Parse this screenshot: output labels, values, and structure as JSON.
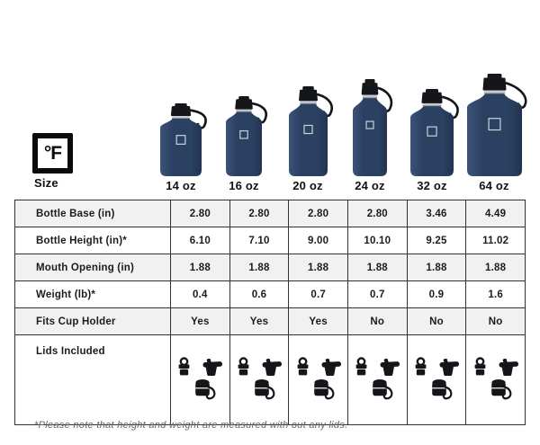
{
  "brand": {
    "logo_text": "°F"
  },
  "header": {
    "size_label": "Size",
    "sizes": [
      "14 oz",
      "16 oz",
      "20 oz",
      "24 oz",
      "32 oz",
      "64 oz"
    ]
  },
  "table": {
    "rows": [
      {
        "label": "Bottle Base (in)",
        "values": [
          "2.80",
          "2.80",
          "2.80",
          "2.80",
          "3.46",
          "4.49"
        ]
      },
      {
        "label": "Bottle Height (in)*",
        "values": [
          "6.10",
          "7.10",
          "9.00",
          "10.10",
          "9.25",
          "11.02"
        ]
      },
      {
        "label": "Mouth Opening (in)",
        "values": [
          "1.88",
          "1.88",
          "1.88",
          "1.88",
          "1.88",
          "1.88"
        ]
      },
      {
        "label": "Weight (lb)*",
        "values": [
          "0.4",
          "0.6",
          "0.7",
          "0.7",
          "0.9",
          "1.6"
        ]
      },
      {
        "label": "Fits Cup Holder",
        "values": [
          "Yes",
          "Yes",
          "Yes",
          "No",
          "No",
          "No"
        ]
      },
      {
        "label": "Lids Included",
        "lids": [
          "loop-handle-lid",
          "flip-spout-lid",
          "strap-carrier-lid"
        ]
      }
    ]
  },
  "footnote": "*Please note that height and weight are measured with out any lids.",
  "colors": {
    "bottle_body": "#2b4162",
    "bottle_body_light": "#3b5378",
    "bottle_body_dark": "#223351",
    "bottle_cap": "#15161a",
    "bottle_band": "#c6cbd2",
    "row_shade": "#f1f1f1",
    "table_border": "#333333",
    "text": "#1c1c1e",
    "footnote_text": "#63666b"
  }
}
